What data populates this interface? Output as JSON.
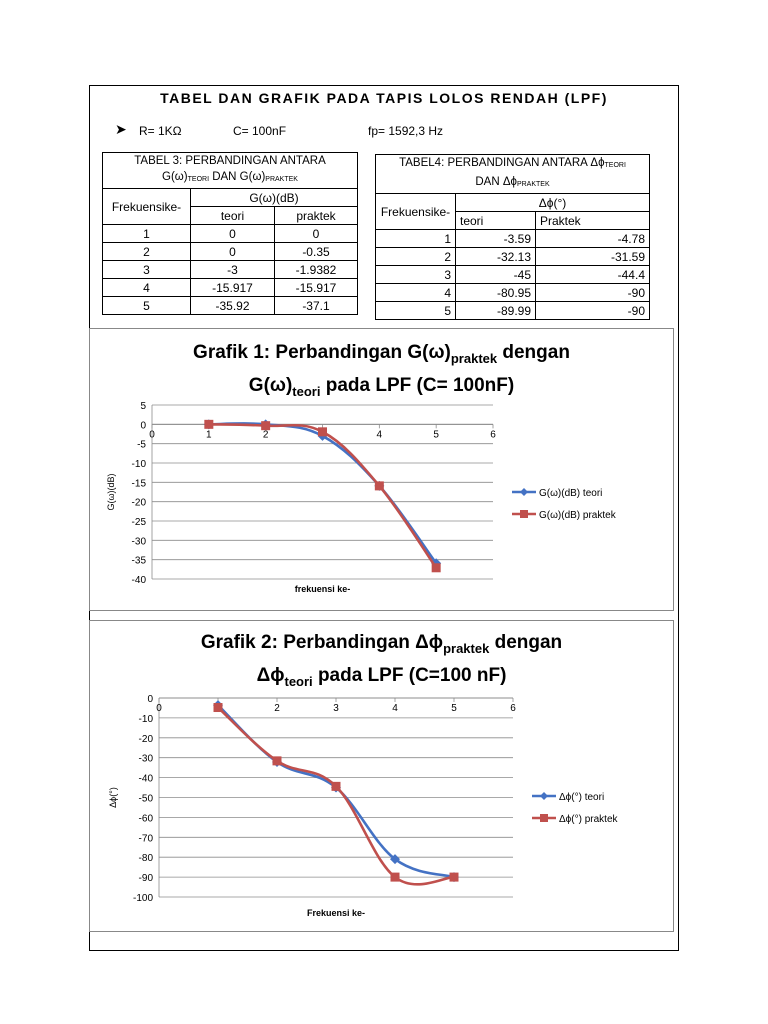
{
  "header": {
    "title": "TABEL DAN GRAFIK PADA TAPIS LOLOS RENDAH (LPF)",
    "params": {
      "bullet": "➤",
      "r": "R= 1KΩ",
      "c": "C= 100nF",
      "fp": "fp= 1592,3 Hz"
    }
  },
  "table3": {
    "title_line1": "TABEL 3: PERBANDINGAN ANTARA",
    "title_line2_a": "G(ω)",
    "title_line2_sub1": "TEORI",
    "title_line2_b": " DAN G(ω)",
    "title_line2_sub2": "PRAKTEK",
    "col_freq": "Frekuensike-",
    "col_group": "G(ω)(dB)",
    "col_teori": "teori",
    "col_praktek": "praktek",
    "rows": [
      {
        "k": "1",
        "teori": "0",
        "praktek": "0"
      },
      {
        "k": "2",
        "teori": "0",
        "praktek": "-0.35"
      },
      {
        "k": "3",
        "teori": "-3",
        "praktek": "-1.9382"
      },
      {
        "k": "4",
        "teori": "-15.917",
        "praktek": "-15.917"
      },
      {
        "k": "5",
        "teori": "-35.92",
        "praktek": "-37.1"
      }
    ]
  },
  "table4": {
    "title_line1_a": "TABEL4: PERBANDINGAN ANTARA Δϕ",
    "title_line1_sub": "TEORI",
    "title_line2_a": "DAN Δϕ",
    "title_line2_sub": "PRAKTEK",
    "col_freq": "Frekuensike-",
    "col_group": "Δϕ(°)",
    "col_teori": "teori",
    "col_praktek": "Praktek",
    "rows": [
      {
        "k": "1",
        "teori": "-3.59",
        "praktek": "-4.78"
      },
      {
        "k": "2",
        "teori": "-32.13",
        "praktek": "-31.59"
      },
      {
        "k": "3",
        "teori": "-45",
        "praktek": "-44.4"
      },
      {
        "k": "4",
        "teori": "-80.95",
        "praktek": "-90"
      },
      {
        "k": "5",
        "teori": "-89.99",
        "praktek": "-90"
      }
    ]
  },
  "chart_data": [
    {
      "type": "line",
      "title_l1_a": "Grafik 1: Perbandingan G(ω)",
      "title_l1_sub": "praktek",
      "title_l1_b": " dengan",
      "title_l2_a": "G(ω)",
      "title_l2_sub": "teori",
      "title_l2_b": " pada LPF (C= 100nF)",
      "xlabel": "frekuensi ke-",
      "ylabel": "G(ω)(dB)",
      "xlim": [
        0,
        6
      ],
      "ylim": [
        -40,
        5
      ],
      "ystep": 5,
      "grid": true,
      "legend": "right",
      "x": [
        1,
        2,
        3,
        4,
        5
      ],
      "series": [
        {
          "name": "G(ω)(dB) teori",
          "values": [
            0,
            0,
            -3,
            -15.917,
            -35.92
          ],
          "color": "#4472C4",
          "marker": "diamond"
        },
        {
          "name": "G(ω)(dB) praktek",
          "values": [
            0,
            -0.35,
            -1.9382,
            -15.917,
            -37.1
          ],
          "color": "#C0504D",
          "marker": "square"
        }
      ]
    },
    {
      "type": "line",
      "title_l1_a": "Grafik 2: Perbandingan Δϕ",
      "title_l1_sub": "praktek",
      "title_l1_b": " dengan",
      "title_l2_a": "Δϕ",
      "title_l2_sub": "teori",
      "title_l2_b": " pada LPF (C=100 nF)",
      "xlabel": "Frekuensi ke-",
      "ylabel": "Δϕ(°)",
      "xlim": [
        0,
        6
      ],
      "ylim": [
        -100,
        0
      ],
      "ystep": 10,
      "grid": true,
      "legend": "right",
      "x": [
        1,
        2,
        3,
        4,
        5
      ],
      "series": [
        {
          "name": "Δϕ(°) teori",
          "values": [
            -3.59,
            -32.13,
            -45,
            -80.95,
            -89.99
          ],
          "color": "#4472C4",
          "marker": "diamond"
        },
        {
          "name": "Δϕ(°) praktek",
          "values": [
            -4.78,
            -31.59,
            -44.4,
            -90,
            -90
          ],
          "color": "#C0504D",
          "marker": "square"
        }
      ]
    }
  ]
}
